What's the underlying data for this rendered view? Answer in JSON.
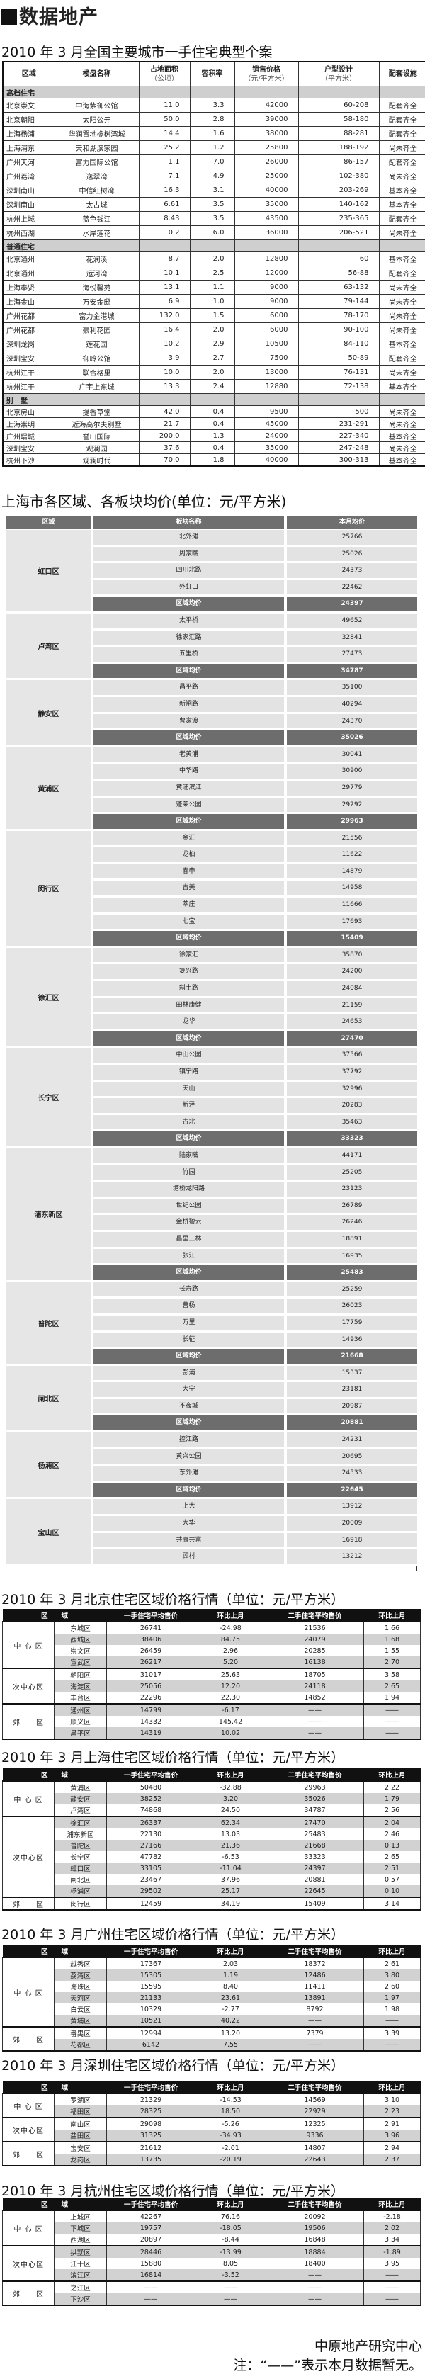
{
  "masthead": "数据地产",
  "t1": {
    "title": "2010 年 3 月全国主要城市一手住宅典型个案",
    "headers": [
      {
        "main": "区域",
        "sub": ""
      },
      {
        "main": "楼盘名称",
        "sub": ""
      },
      {
        "main": "占地面积",
        "sub": "（公顷）"
      },
      {
        "main": "容积率",
        "sub": ""
      },
      {
        "main": "销售价格",
        "sub": "（元/平方米）"
      },
      {
        "main": "户型设计",
        "sub": "（平方米）"
      },
      {
        "main": "配套设施",
        "sub": ""
      }
    ],
    "sections": [
      {
        "label": "高档住宅",
        "rows": [
          [
            "北京崇文",
            "中海紫御公馆",
            "11.0",
            "3.3",
            "42000",
            "60-208",
            "配套齐全"
          ],
          [
            "北京朝阳",
            "太阳公元",
            "50.0",
            "2.8",
            "39000",
            "58-180",
            "配套齐全"
          ],
          [
            "上海杨浦",
            "华润置地橡树湾城",
            "14.4",
            "1.6",
            "38000",
            "88-281",
            "配套齐全"
          ],
          [
            "上海浦东",
            "天和湖滨家园",
            "25.2",
            "1.2",
            "25800",
            "188-192",
            "尚未齐全"
          ],
          [
            "广州天河",
            "富力国际公馆",
            "1.1",
            "7.0",
            "26000",
            "86-157",
            "配套齐全"
          ],
          [
            "广州荔湾",
            "逸翠湾",
            "7.1",
            "4.9",
            "25000",
            "102-380",
            "尚未齐全"
          ],
          [
            "深圳南山",
            "中信红树湾",
            "16.3",
            "3.1",
            "40000",
            "203-269",
            "基本齐全"
          ],
          [
            "深圳南山",
            "太古城",
            "6.61",
            "3.5",
            "35000",
            "140-162",
            "基本齐全"
          ],
          [
            "杭州上城",
            "蓝色钱江",
            "8.43",
            "3.5",
            "43500",
            "235-365",
            "配套齐全"
          ],
          [
            "杭州西湖",
            "水岸莲花",
            "0.2",
            "6.0",
            "36000",
            "206-521",
            "尚未齐全"
          ]
        ]
      },
      {
        "label": "普通住宅",
        "rows": [
          [
            "北京通州",
            "花润溪",
            "8.7",
            "2.0",
            "12800",
            "60",
            "基本齐全"
          ],
          [
            "北京通州",
            "运河湾",
            "10.1",
            "2.5",
            "12000",
            "56-88",
            "配套齐全"
          ],
          [
            "上海奉贤",
            "海悦馨苑",
            "13.1",
            "1.1",
            "9000",
            "63-132",
            "尚未齐全"
          ],
          [
            "上海金山",
            "万安金邸",
            "6.9",
            "1.0",
            "9000",
            "79-144",
            "尚未齐全"
          ],
          [
            "广州花都",
            "富力金港城",
            "132.0",
            "1.5",
            "6000",
            "78-170",
            "尚未齐全"
          ],
          [
            "广州花都",
            "豪利花园",
            "16.4",
            "2.0",
            "6000",
            "90-100",
            "尚未齐全"
          ],
          [
            "深圳龙岗",
            "莲花园",
            "10.2",
            "2.9",
            "10500",
            "84-110",
            "基本齐全"
          ],
          [
            "深圳宝安",
            "御岭公馆",
            "3.9",
            "2.7",
            "7500",
            "50-89",
            "配套齐全"
          ],
          [
            "杭州江干",
            "联合格里",
            "10.0",
            "2.0",
            "13000",
            "76-131",
            "尚未齐全"
          ],
          [
            "杭州江干",
            "广宇上东城",
            "13.3",
            "2.4",
            "12880",
            "72-138",
            "基本齐全"
          ]
        ]
      },
      {
        "label": "别　墅",
        "rows": [
          [
            "北京房山",
            "提香草堂",
            "42.0",
            "0.4",
            "9500",
            "500",
            "尚未齐全"
          ],
          [
            "上海崇明",
            "近海高尔夫别墅",
            "21.7",
            "0.4",
            "45000",
            "231-291",
            "尚未齐全"
          ],
          [
            "广州增城",
            "誉山国际",
            "200.0",
            "1.3",
            "24000",
            "227-340",
            "基本齐全"
          ],
          [
            "深圳宝安",
            "观澜园",
            "37.6",
            "0.4",
            "35000",
            "247-248",
            "尚未齐全"
          ],
          [
            "杭州下沙",
            "观澜时代",
            "70.0",
            "1.8",
            "40000",
            "300-313",
            "基本齐全"
          ]
        ]
      }
    ]
  },
  "t2": {
    "title": "上海市各区域、各板块均价(单位：元/平方米)",
    "headers": [
      "区域",
      "板块名称",
      "本月均价"
    ],
    "avg_label": "区域均价",
    "districts": [
      {
        "name": "虹口区",
        "blocks": [
          [
            "北外滩",
            "25766"
          ],
          [
            "周家嘴",
            "25026"
          ],
          [
            "四川北路",
            "24373"
          ],
          [
            "外虹口",
            "22462"
          ]
        ],
        "avg": "24397"
      },
      {
        "name": "卢湾区",
        "blocks": [
          [
            "太平桥",
            "49652"
          ],
          [
            "徐家汇路",
            "32841"
          ],
          [
            "五里桥",
            "27473"
          ]
        ],
        "avg": "34787"
      },
      {
        "name": "静安区",
        "blocks": [
          [
            "昌平路",
            "35100"
          ],
          [
            "新闸路",
            "40294"
          ],
          [
            "曹家渡",
            "24370"
          ]
        ],
        "avg": "35026"
      },
      {
        "name": "黄浦区",
        "blocks": [
          [
            "老黄浦",
            "30041"
          ],
          [
            "中华路",
            "30900"
          ],
          [
            "黄浦滨江",
            "29779"
          ],
          [
            "蓬莱公园",
            "29292"
          ]
        ],
        "avg": "29963"
      },
      {
        "name": "闵行区",
        "blocks": [
          [
            "金汇",
            "21556"
          ],
          [
            "龙柏",
            "11622"
          ],
          [
            "春申",
            "14879"
          ],
          [
            "古美",
            "14958"
          ],
          [
            "莘庄",
            "11666"
          ],
          [
            "七宝",
            "17693"
          ]
        ],
        "avg": "15409"
      },
      {
        "name": "徐汇区",
        "blocks": [
          [
            "徐家汇",
            "35870"
          ],
          [
            "复兴路",
            "24200"
          ],
          [
            "斜土路",
            "24084"
          ],
          [
            "田林康健",
            "21159"
          ],
          [
            "龙华",
            "24653"
          ]
        ],
        "avg": "27470"
      },
      {
        "name": "长宁区",
        "blocks": [
          [
            "中山公园",
            "37566"
          ],
          [
            "镇宁路",
            "37792"
          ],
          [
            "天山",
            "32996"
          ],
          [
            "新泾",
            "20283"
          ],
          [
            "古北",
            "35463"
          ]
        ],
        "avg": "33323"
      },
      {
        "name": "浦东新区",
        "blocks": [
          [
            "陆家嘴",
            "44171"
          ],
          [
            "竹园",
            "25205"
          ],
          [
            "塘桥龙阳路",
            "23123"
          ],
          [
            "世纪公园",
            "26789"
          ],
          [
            "金桥碧云",
            "26246"
          ],
          [
            "昌里三林",
            "18891"
          ],
          [
            "张江",
            "16935"
          ]
        ],
        "avg": "25483"
      },
      {
        "name": "普陀区",
        "blocks": [
          [
            "长寿路",
            "25259"
          ],
          [
            "曹杨",
            "26023"
          ],
          [
            "万里",
            "17759"
          ],
          [
            "长征",
            "14936"
          ]
        ],
        "avg": "21668"
      },
      {
        "name": "闸北区",
        "blocks": [
          [
            "彭浦",
            "15337"
          ],
          [
            "大宁",
            "23181"
          ],
          [
            "不夜城",
            "20987"
          ]
        ],
        "avg": "20881"
      },
      {
        "name": "杨浦区",
        "blocks": [
          [
            "控江路",
            "24231"
          ],
          [
            "黄兴公园",
            "20695"
          ],
          [
            "东外滩",
            "24533"
          ]
        ],
        "avg": "22645"
      },
      {
        "name": "宝山区",
        "blocks": [
          [
            "上大",
            "13912"
          ],
          [
            "大华",
            "20009"
          ],
          [
            "共康共富",
            "16918"
          ],
          [
            "顾村",
            "13212"
          ]
        ],
        "avg": null
      }
    ]
  },
  "price_headers": [
    "区　　域",
    "一手住宅平均售价",
    "环比上月",
    "二手住宅平均售价",
    "环比上月"
  ],
  "price_tables": [
    {
      "id": "bj",
      "title": "2010 年 3 月北京住宅区域价格行情（单位：元/平方米）",
      "groups": [
        {
          "region": "中 心 区",
          "rows": [
            [
              "东城区",
              "26741",
              "-24.98",
              "21536",
              "1.66"
            ],
            [
              "西城区",
              "38406",
              "84.75",
              "24079",
              "1.68"
            ],
            [
              "崇文区",
              "26459",
              "2.96",
              "20285",
              "1.55"
            ],
            [
              "宣武区",
              "26217",
              "5.20",
              "16138",
              "2.70"
            ]
          ]
        },
        {
          "region": "次中心区",
          "rows": [
            [
              "朝阳区",
              "31017",
              "25.63",
              "18705",
              "3.58"
            ],
            [
              "海淀区",
              "25056",
              "12.20",
              "24118",
              "2.65"
            ],
            [
              "丰台区",
              "22296",
              "22.30",
              "14852",
              "1.94"
            ]
          ]
        },
        {
          "region": "郊　　区",
          "rows": [
            [
              "通州区",
              "14799",
              "-6.17",
              "——",
              "——"
            ],
            [
              "顺义区",
              "14332",
              "145.42",
              "——",
              "——"
            ],
            [
              "昌平区",
              "14319",
              "10.02",
              "——",
              "——"
            ]
          ]
        }
      ]
    },
    {
      "id": "sh",
      "title": "2010 年 3 月上海住宅区域价格行情（单位：元/平方米）",
      "groups": [
        {
          "region": "中 心 区",
          "rows": [
            [
              "黄浦区",
              "50480",
              "-32.88",
              "29963",
              "2.22"
            ],
            [
              "静安区",
              "38252",
              "3.20",
              "35026",
              "1.79"
            ],
            [
              "卢湾区",
              "74868",
              "24.50",
              "34787",
              "2.56"
            ]
          ]
        },
        {
          "region": "次中心区",
          "rows": [
            [
              "徐汇区",
              "26337",
              "62.34",
              "27470",
              "2.04"
            ],
            [
              "浦东新区",
              "22130",
              "13.03",
              "25483",
              "2.46"
            ],
            [
              "普陀区",
              "27166",
              "21.36",
              "21668",
              "0.13"
            ],
            [
              "长宁区",
              "47782",
              "-6.53",
              "33323",
              "2.65"
            ],
            [
              "虹口区",
              "33105",
              "-11.04",
              "24397",
              "2.51"
            ],
            [
              "闸北区",
              "23467",
              "37.96",
              "20881",
              "0.57"
            ],
            [
              "杨浦区",
              "29502",
              "25.17",
              "22645",
              "0.10"
            ]
          ]
        },
        {
          "region": "郊　　区",
          "rows": [
            [
              "闵行区",
              "12459",
              "34.19",
              "15409",
              "3.14"
            ]
          ]
        }
      ]
    },
    {
      "id": "gz",
      "title": "2010 年 3 月广州住宅区域价格行情（单位：元/平方米）",
      "groups": [
        {
          "region": "中 心 区",
          "rows": [
            [
              "越秀区",
              "17367",
              "2.03",
              "18372",
              "2.61"
            ],
            [
              "荔湾区",
              "15305",
              "1.19",
              "12486",
              "3.80"
            ],
            [
              "海珠区",
              "15595",
              "8.40",
              "11411",
              "2.60"
            ],
            [
              "天河区",
              "21133",
              "23.61",
              "13891",
              "1.97"
            ],
            [
              "白云区",
              "10329",
              "-2.77",
              "8792",
              "1.98"
            ],
            [
              "黄埔区",
              "10521",
              "40.22",
              "——",
              "——"
            ]
          ]
        },
        {
          "region": "郊　　区",
          "rows": [
            [
              "番禺区",
              "12994",
              "13.20",
              "7379",
              "3.39"
            ],
            [
              "花都区",
              "6142",
              "7.55",
              "——",
              "——"
            ]
          ]
        }
      ]
    },
    {
      "id": "sz",
      "title": "2010 年 3 月深圳住宅区域价格行情（单位：元/平方米）",
      "groups": [
        {
          "region": "中 心 区",
          "rows": [
            [
              "罗湖区",
              "21329",
              "-14.53",
              "14569",
              "3.10"
            ],
            [
              "福田区",
              "28325",
              "18.50",
              "22929",
              "2.23"
            ]
          ]
        },
        {
          "region": "次中心区",
          "rows": [
            [
              "南山区",
              "29098",
              "-5.26",
              "12325",
              "2.91"
            ],
            [
              "盐田区",
              "31325",
              "-34.93",
              "9336",
              "3.96"
            ]
          ]
        },
        {
          "region": "郊　　区",
          "rows": [
            [
              "宝安区",
              "21612",
              "-2.01",
              "14807",
              "2.94"
            ],
            [
              "龙岗区",
              "13735",
              "-20.19",
              "22643",
              "2.37"
            ]
          ]
        }
      ]
    },
    {
      "id": "hz",
      "title": "2010 年 3 月杭州住宅区域价格行情（单位：元/平方米）",
      "groups": [
        {
          "region": "中 心 区",
          "rows": [
            [
              "上城区",
              "42267",
              "76.16",
              "20092",
              "-2.18"
            ],
            [
              "下城区",
              "19757",
              "-18.05",
              "19506",
              "2.02"
            ],
            [
              "西湖区",
              "20897",
              "-8.44",
              "16848",
              "3.34"
            ]
          ]
        },
        {
          "region": "次中心区",
          "rows": [
            [
              "拱墅区",
              "28446",
              "-13.99",
              "18884",
              "-1.89"
            ],
            [
              "江干区",
              "15880",
              "8.05",
              "18400",
              "3.95"
            ],
            [
              "滨江区",
              "16814",
              "-3.52",
              "——",
              "——"
            ]
          ]
        },
        {
          "region": "郊　　区",
          "rows": [
            [
              "之江区",
              "——",
              "——",
              "——",
              "——"
            ],
            [
              "下沙区",
              "——",
              "——",
              "——",
              "——"
            ]
          ]
        }
      ]
    }
  ],
  "footer": {
    "source": "中原地产研究中心",
    "note": "注：“——”表示本月数据暂无。"
  }
}
